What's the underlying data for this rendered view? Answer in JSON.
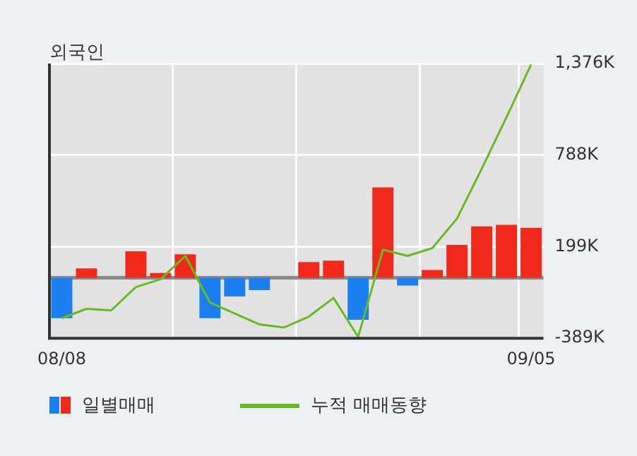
{
  "chart_data": {
    "type": "bar",
    "title": "외국인",
    "categories": [
      "08/08",
      null,
      null,
      null,
      null,
      null,
      null,
      null,
      null,
      null,
      null,
      null,
      null,
      null,
      null,
      null,
      null,
      null,
      null,
      "09/05"
    ],
    "series": [
      {
        "name": "일별매매",
        "colors": [
          "#1b7ff0",
          "#f0291b",
          "#f0291b",
          "#f0291b",
          "#f0291b",
          "#f0291b",
          "#1b7ff0",
          "#1b7ff0",
          "#1b7ff0",
          "#f0291b",
          "#f0291b",
          "#f0291b",
          "#1b7ff0",
          "#f0291b",
          "#1b7ff0",
          "#f0291b",
          "#f0291b",
          "#f0291b",
          "#f0291b",
          "#f0291b"
        ],
        "values": [
          -260,
          60,
          0,
          170,
          30,
          150,
          -260,
          -120,
          -80,
          0,
          100,
          110,
          -270,
          580,
          -50,
          50,
          210,
          330,
          340,
          320
        ]
      },
      {
        "name": "누적 매매동향",
        "type": "line",
        "color": "#66bb22",
        "values": [
          -260,
          -200,
          -210,
          -60,
          -10,
          140,
          -160,
          -230,
          -300,
          -320,
          -250,
          -130,
          -380,
          180,
          140,
          190,
          380,
          700,
          1030,
          1370
        ]
      }
    ],
    "ylim": [
      -389,
      1376
    ],
    "yticks": [
      {
        "value": -389,
        "label": "-389K"
      },
      {
        "value": 199,
        "label": "199K"
      },
      {
        "value": 788,
        "label": "788K"
      },
      {
        "value": 1376,
        "label": "1,376K"
      }
    ],
    "ref_lines": [
      {
        "axis": "y",
        "value": 0,
        "color": "#888888"
      }
    ],
    "grid": true,
    "legend": "bottom",
    "marker": "none",
    "line_style": "solid"
  }
}
